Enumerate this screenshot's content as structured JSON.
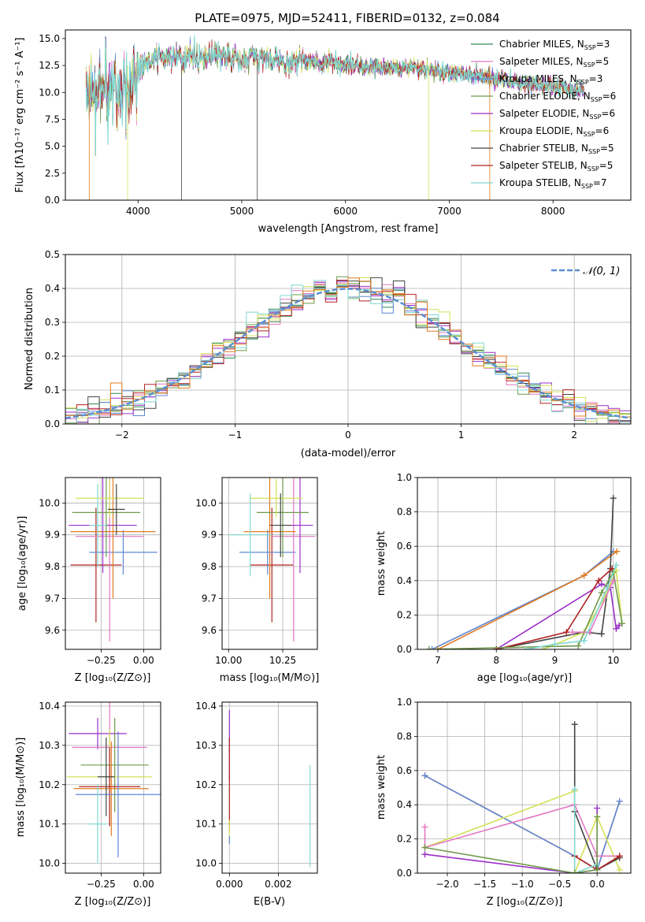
{
  "figure": {
    "title": "PLATE=0975, MJD=52411, FIBERID=0132, z=0.084"
  },
  "colors": {
    "chabrier_miles": "#2e8b57",
    "salpeter_miles": "#e377c2",
    "kroupa_miles": "#5f87d6",
    "chabrier_elodie": "#6f9a4a",
    "salpeter_elodie": "#9b30c8",
    "kroupa_elodie": "#d4e157",
    "chabrier_stelib": "#444444",
    "salpeter_stelib": "#b22222",
    "kroupa_stelib": "#7fd8d0",
    "orange": "#e07b20",
    "normal_curve": "#5b8fd0",
    "grid": "#b0b0b0"
  },
  "chart_data": [
    {
      "id": "spectrum",
      "type": "line",
      "xlabel": "wavelength [Angstrom, rest frame]",
      "ylabel": "Flux [fλ10⁻¹⁷ erg cm⁻² s⁻¹ A⁻¹]",
      "xlim": [
        3300,
        8750
      ],
      "ylim": [
        0,
        15.8
      ],
      "xticks": [
        "4000",
        "5000",
        "6000",
        "7000",
        "8000"
      ],
      "yticks": [
        "0.0",
        "2.5",
        "5.0",
        "7.5",
        "10.0",
        "12.5",
        "15.0"
      ],
      "grid": false,
      "legend_position": "top-right",
      "continuum": {
        "x": [
          3520,
          3600,
          3700,
          3800,
          3900,
          4000,
          4100,
          4300,
          4500,
          4800,
          5000,
          5300,
          5600,
          6000,
          6400,
          6800,
          7000,
          7300,
          7600,
          8000,
          8300
        ],
        "y": [
          9.0,
          10.0,
          10.5,
          10.5,
          10.0,
          12.0,
          13.0,
          13.2,
          13.2,
          13.3,
          13.2,
          13.2,
          12.9,
          12.6,
          12.3,
          12.2,
          11.8,
          11.5,
          11.0,
          10.5,
          10.2
        ]
      },
      "series": [
        {
          "name": "Chabrier MILES, N_SSP=3",
          "label": "Chabrier MILES, N",
          "nssp": "=3",
          "color_key": "chabrier_miles"
        },
        {
          "name": "Salpeter MILES, N_SSP=5",
          "label": "Salpeter MILES, N",
          "nssp": "=5",
          "color_key": "salpeter_miles"
        },
        {
          "name": "Kroupa MILES, N_SSP=3",
          "label": "Kroupa MILES, N",
          "nssp": "=3",
          "color_key": "kroupa_miles"
        },
        {
          "name": "Chabrier ELODIE, N_SSP=6",
          "label": "Chabrier ELODIE, N",
          "nssp": "=6",
          "color_key": "chabrier_elodie"
        },
        {
          "name": "Salpeter ELODIE, N_SSP=6",
          "label": "Salpeter ELODIE, N",
          "nssp": "=6",
          "color_key": "salpeter_elodie"
        },
        {
          "name": "Kroupa ELODIE, N_SSP=6",
          "label": "Kroupa ELODIE, N",
          "nssp": "=6",
          "color_key": "kroupa_elodie"
        },
        {
          "name": "Chabrier STELIB, N_SSP=5",
          "label": "Chabrier STELIB, N",
          "nssp": "=5",
          "color_key": "chabrier_stelib"
        },
        {
          "name": "Salpeter STELIB, N_SSP=5",
          "label": "Salpeter STELIB, N",
          "nssp": "=5",
          "color_key": "salpeter_stelib"
        },
        {
          "name": "Kroupa STELIB, N_SSP=7",
          "label": "Kroupa STELIB, N",
          "nssp": "=7",
          "color_key": "kroupa_stelib"
        }
      ],
      "legend_sub": "SSP"
    },
    {
      "id": "residuals",
      "type": "histogram",
      "xlabel": "(data-model)/error",
      "ylabel": "Normed distribution",
      "xlim": [
        -2.5,
        2.5
      ],
      "ylim": [
        0,
        0.5
      ],
      "xticks": [
        "−2",
        "−1",
        "0",
        "1",
        "2"
      ],
      "yticks": [
        "0.0",
        "0.1",
        "0.2",
        "0.3",
        "0.4",
        "0.5"
      ],
      "grid": true,
      "legend_position": "top-right",
      "legend": "𝒩(0, 1)",
      "bin_width": 0.1
    },
    {
      "id": "age_vs_z",
      "type": "scatter",
      "xlabel": "Z [log₁₀(Z/Z⊙)]",
      "ylabel": "age  [log₁₀(age/yr)]",
      "xlim": [
        -0.46,
        0.1
      ],
      "ylim": [
        9.54,
        10.08
      ],
      "xticks": [
        "−0.25",
        "0.00"
      ],
      "yticks": [
        "9.6",
        "9.7",
        "9.8",
        "9.9",
        "10.0"
      ],
      "grid": true,
      "points": [
        {
          "x": -0.28,
          "xerr": 0.15,
          "y": 9.805,
          "yerr": 0.18,
          "color_key": "salpeter_stelib"
        },
        {
          "x": -0.12,
          "xerr": 0.2,
          "y": 9.845,
          "yerr": 0.07,
          "color_key": "kroupa_miles"
        },
        {
          "x": -0.2,
          "xerr": 0.2,
          "y": 9.895,
          "yerr": 0.33,
          "color_key": "salpeter_miles"
        },
        {
          "x": -0.18,
          "xerr": 0.25,
          "y": 9.91,
          "yerr": 0.21,
          "color_key": "orange"
        },
        {
          "x": -0.24,
          "xerr": 0.2,
          "y": 9.93,
          "yerr": 0.15,
          "color_key": "salpeter_elodie"
        },
        {
          "x": -0.22,
          "xerr": 0.2,
          "y": 9.97,
          "yerr": 0.14,
          "color_key": "chabrier_elodie"
        },
        {
          "x": -0.2,
          "xerr": 0.2,
          "y": 10.015,
          "yerr": 0.06,
          "color_key": "kroupa_elodie"
        },
        {
          "x": -0.27,
          "xerr": 0.05,
          "y": 9.93,
          "yerr": 0.13,
          "color_key": "kroupa_stelib"
        },
        {
          "x": -0.16,
          "xerr": 0.05,
          "y": 9.98,
          "yerr": 0.08,
          "color_key": "chabrier_stelib"
        }
      ]
    },
    {
      "id": "age_vs_mass",
      "type": "scatter",
      "xlabel": "mass [log₁₀(M/M⊙)]",
      "ylabel": "",
      "xlim": [
        9.97,
        10.41
      ],
      "ylim": [
        9.54,
        10.08
      ],
      "xticks": [
        "10.00",
        "10.25"
      ],
      "yticks": [
        "9.6",
        "9.7",
        "9.8",
        "9.9",
        "10.0"
      ],
      "grid": true,
      "points": [
        {
          "x": 10.2,
          "xerr": 0.1,
          "y": 9.805,
          "yerr": 0.18,
          "color_key": "salpeter_stelib"
        },
        {
          "x": 10.18,
          "xerr": 0.13,
          "y": 9.845,
          "yerr": 0.07,
          "color_key": "kroupa_miles"
        },
        {
          "x": 10.3,
          "xerr": 0.1,
          "y": 9.895,
          "yerr": 0.33,
          "color_key": "salpeter_miles"
        },
        {
          "x": 10.19,
          "xerr": 0.12,
          "y": 9.91,
          "yerr": 0.21,
          "color_key": "orange"
        },
        {
          "x": 10.33,
          "xerr": 0.06,
          "y": 9.93,
          "yerr": 0.15,
          "color_key": "salpeter_elodie"
        },
        {
          "x": 10.25,
          "xerr": 0.12,
          "y": 9.97,
          "yerr": 0.14,
          "color_key": "chabrier_elodie"
        },
        {
          "x": 10.22,
          "xerr": 0.12,
          "y": 10.015,
          "yerr": 0.06,
          "color_key": "kroupa_elodie"
        },
        {
          "x": 10.1,
          "xerr": 0.1,
          "y": 9.9,
          "yerr": 0.13,
          "color_key": "kroupa_stelib"
        },
        {
          "x": 10.24,
          "xerr": 0.05,
          "y": 9.93,
          "yerr": 0.1,
          "color_key": "chabrier_stelib"
        }
      ]
    },
    {
      "id": "weight_vs_age",
      "type": "line",
      "xlabel": "age  [log₁₀(age/yr)]",
      "ylabel": "mass weight",
      "xlim": [
        6.65,
        10.3
      ],
      "ylim": [
        0,
        1.0
      ],
      "xticks": [
        "7",
        "8",
        "9",
        "10"
      ],
      "yticks": [
        "0.0",
        "0.2",
        "0.4",
        "0.6",
        "0.8",
        "1.0"
      ],
      "grid": true,
      "series": [
        {
          "color_key": "kroupa_miles",
          "x": [
            6.9,
            9.5,
            10.0
          ],
          "y": [
            0.0,
            0.43,
            0.57
          ]
        },
        {
          "color_key": "orange",
          "x": [
            7.0,
            9.5,
            10.06
          ],
          "y": [
            0.0,
            0.43,
            0.57
          ]
        },
        {
          "color_key": "chabrier_stelib",
          "x": [
            8.0,
            9.5,
            9.8,
            9.95,
            10.0
          ],
          "y": [
            0.0,
            0.1,
            0.09,
            0.47,
            0.88
          ]
        },
        {
          "color_key": "salpeter_elodie",
          "x": [
            8.0,
            9.8,
            9.95,
            10.05,
            10.1
          ],
          "y": [
            0.0,
            0.38,
            0.36,
            0.12,
            0.14
          ]
        },
        {
          "color_key": "salpeter_stelib",
          "x": [
            8.0,
            9.2,
            9.75,
            9.98
          ],
          "y": [
            0.0,
            0.1,
            0.4,
            0.47
          ]
        },
        {
          "color_key": "kroupa_elodie",
          "x": [
            8.8,
            9.5,
            9.85,
            10.05,
            10.15
          ],
          "y": [
            0.0,
            0.1,
            0.3,
            0.46,
            0.15
          ]
        },
        {
          "color_key": "chabrier_elodie",
          "x": [
            6.85,
            9.4,
            9.8,
            10.0,
            10.15
          ],
          "y": [
            0.0,
            0.02,
            0.33,
            0.45,
            0.15
          ]
        },
        {
          "color_key": "salpeter_miles",
          "x": [
            9.3,
            9.6,
            10.0
          ],
          "y": [
            0.1,
            0.1,
            0.4
          ]
        },
        {
          "color_key": "kroupa_stelib",
          "x": [
            8.5,
            9.0,
            9.5,
            9.9,
            10.05
          ],
          "y": [
            0.0,
            0.03,
            0.05,
            0.36,
            0.49
          ]
        }
      ]
    },
    {
      "id": "mass_vs_z",
      "type": "scatter",
      "xlabel": "Z [log₁₀(Z/Z⊙)]",
      "ylabel": "mass [log₁₀(M/M⊙)]",
      "xlim": [
        -0.46,
        0.1
      ],
      "ylim": [
        9.975,
        10.41
      ],
      "xticks": [
        "−0.25",
        "0.00"
      ],
      "yticks": [
        "10.0",
        "10.1",
        "10.2",
        "10.3",
        "10.4"
      ],
      "grid": true,
      "points": [
        {
          "x": -0.27,
          "xerr": 0.17,
          "y": 10.33,
          "yerr": 0.04,
          "color_key": "salpeter_elodie"
        },
        {
          "x": -0.2,
          "xerr": 0.22,
          "y": 10.295,
          "yerr": 0.2,
          "color_key": "salpeter_miles"
        },
        {
          "x": -0.17,
          "xerr": 0.2,
          "y": 10.25,
          "yerr": 0.12,
          "color_key": "chabrier_elodie"
        },
        {
          "x": -0.2,
          "xerr": 0.25,
          "y": 10.22,
          "yerr": 0.12,
          "color_key": "kroupa_elodie"
        },
        {
          "x": -0.2,
          "xerr": 0.18,
          "y": 10.195,
          "yerr": 0.1,
          "color_key": "salpeter_stelib"
        },
        {
          "x": -0.19,
          "xerr": 0.22,
          "y": 10.19,
          "yerr": 0.12,
          "color_key": "orange"
        },
        {
          "x": -0.15,
          "xerr": 0.25,
          "y": 10.175,
          "yerr": 0.16,
          "color_key": "kroupa_miles"
        },
        {
          "x": -0.27,
          "xerr": 0.05,
          "y": 10.1,
          "yerr": 0.1,
          "color_key": "kroupa_stelib"
        },
        {
          "x": -0.22,
          "xerr": 0.05,
          "y": 10.22,
          "yerr": 0.1,
          "color_key": "chabrier_stelib"
        }
      ]
    },
    {
      "id": "mass_vs_ebv",
      "type": "scatter",
      "xlabel": "E(B-V)",
      "ylabel": "",
      "xlim": [
        -0.0003,
        0.0036
      ],
      "ylim": [
        9.975,
        10.41
      ],
      "xticks": [
        "0.000",
        "0.002"
      ],
      "yticks": [
        "10.0",
        "10.1",
        "10.2",
        "10.3",
        "10.4"
      ],
      "grid": true,
      "points": [
        {
          "x": 0.0,
          "xerr": 0,
          "y": 10.3,
          "yerr": 0.09,
          "color_key": "salpeter_elodie"
        },
        {
          "x": 0.0,
          "xerr": 0,
          "y": 10.2,
          "yerr": 0.12,
          "color_key": "salpeter_stelib"
        },
        {
          "x": 0.0,
          "xerr": 0,
          "y": 10.08,
          "yerr": 0.03,
          "color_key": "kroupa_elodie"
        },
        {
          "x": 0.0,
          "xerr": 0,
          "y": 10.06,
          "yerr": 0.01,
          "color_key": "kroupa_miles"
        },
        {
          "x": 0.0033,
          "xerr": 0,
          "y": 10.12,
          "yerr": 0.13,
          "color_key": "kroupa_stelib"
        }
      ]
    },
    {
      "id": "weight_vs_z",
      "type": "line",
      "xlabel": "Z [log₁₀(Z/Z⊙)]",
      "ylabel": "mass weight",
      "xlim": [
        -2.4,
        0.45
      ],
      "ylim": [
        0,
        1.0
      ],
      "xticks": [
        "−2.0",
        "−1.5",
        "−1.0",
        "−0.5",
        "0.0"
      ],
      "yticks": [
        "0.0",
        "0.2",
        "0.4",
        "0.6",
        "0.8",
        "1.0"
      ],
      "grid": true,
      "series": [
        {
          "color_key": "orange",
          "x": [
            -2.3,
            -0.3,
            0.0,
            0.3
          ],
          "y": [
            0.57,
            0.1,
            0.02,
            0.42
          ]
        },
        {
          "color_key": "kroupa_miles",
          "x": [
            -2.3,
            -0.3,
            0.0,
            0.3
          ],
          "y": [
            0.57,
            0.1,
            0.02,
            0.42
          ]
        },
        {
          "color_key": "kroupa_elodie",
          "x": [
            -2.3,
            -0.3,
            -0.3,
            0.0,
            0.3
          ],
          "y": [
            0.15,
            0.48,
            0.0,
            0.33,
            0.02
          ]
        },
        {
          "color_key": "salpeter_elodie",
          "x": [
            -2.3,
            -0.3,
            0.0,
            0.0
          ],
          "y": [
            0.11,
            0.0,
            0.02,
            0.38
          ]
        },
        {
          "color_key": "salpeter_miles",
          "x": [
            -2.3,
            -2.3,
            -0.3,
            0.0,
            0.3
          ],
          "y": [
            0.27,
            0.15,
            0.4,
            0.1,
            0.1
          ]
        },
        {
          "color_key": "chabrier_stelib",
          "x": [
            -0.3,
            -0.3,
            0.0,
            0.3
          ],
          "y": [
            0.87,
            0.36,
            0.02,
            0.09
          ]
        },
        {
          "color_key": "salpeter_stelib",
          "x": [
            -0.3,
            0.0,
            0.3
          ],
          "y": [
            0.1,
            0.02,
            0.1
          ]
        },
        {
          "color_key": "kroupa_stelib",
          "x": [
            -0.3,
            -0.3,
            0.0
          ],
          "y": [
            0.49,
            0.0,
            0.05
          ]
        },
        {
          "color_key": "chabrier_elodie",
          "x": [
            -2.3,
            -0.3,
            0.0,
            0.0
          ],
          "y": [
            0.15,
            0.0,
            0.02,
            0.33
          ]
        }
      ]
    }
  ]
}
